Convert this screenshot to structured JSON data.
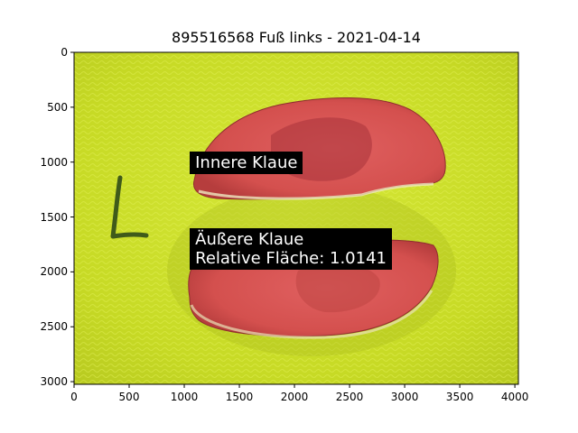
{
  "title": "895516568 Fuß links - 2021-04-14",
  "axes": {
    "xlim": [
      0,
      4032
    ],
    "ylim": [
      3024,
      0
    ],
    "x_ticks": [
      0,
      500,
      1000,
      1500,
      2000,
      2500,
      3000,
      3500,
      4000
    ],
    "y_ticks": [
      0,
      500,
      1000,
      1500,
      2000,
      2500,
      3000
    ],
    "x_tick_labels": [
      "0",
      "500",
      "1000",
      "1500",
      "2000",
      "2500",
      "3000",
      "3500",
      "4000"
    ],
    "y_tick_labels": [
      "0",
      "500",
      "1000",
      "1500",
      "2000",
      "2500",
      "3000"
    ]
  },
  "annotations": [
    {
      "text": "Innere Klaue",
      "x": 1050,
      "y": 1020
    },
    {
      "text": "Äußere Klaue\nRelative Fläche: 1.0141",
      "x": 1050,
      "y": 1720
    }
  ],
  "colors": {
    "background_mat": "#cfe02a",
    "claw_fill": "#d9534f",
    "claw_dark": "#a8333a",
    "annotation_bg": "#000000",
    "annotation_text": "#ffffff"
  }
}
